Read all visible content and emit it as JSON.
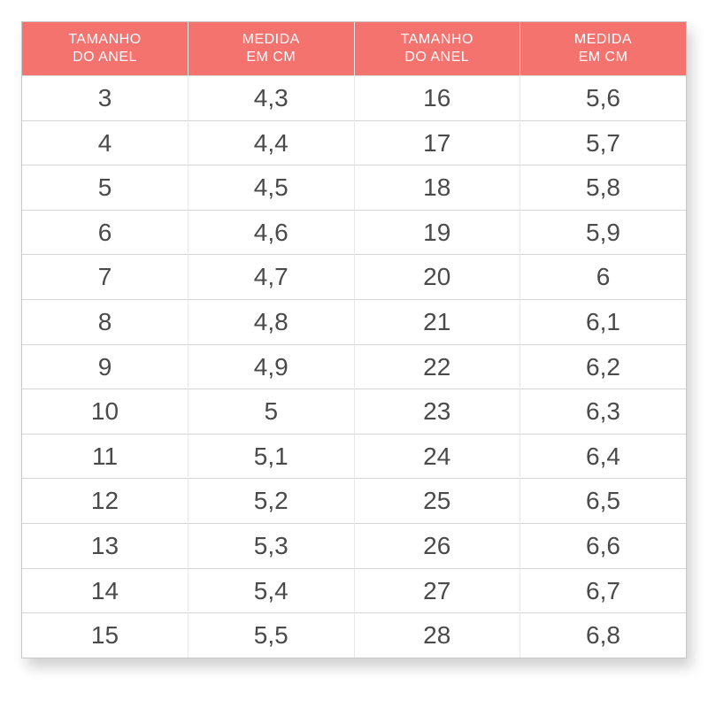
{
  "table": {
    "type": "table",
    "header_bg": "#f4736f",
    "header_text_color": "#ffffff",
    "header_fontsize": 16,
    "cell_fontsize": 28,
    "cell_text_color": "#4a4a4a",
    "border_color": "#d4d4d4",
    "background_color": "#ffffff",
    "columns": [
      {
        "line1": "TAMANHO",
        "line2": "DO ANEL",
        "width": 0.25
      },
      {
        "line1": "MEDIDA",
        "line2": "EM CM",
        "width": 0.25
      },
      {
        "line1": "TAMANHO",
        "line2": "DO ANEL",
        "width": 0.25
      },
      {
        "line1": "MEDIDA",
        "line2": "EM CM",
        "width": 0.25
      }
    ],
    "rows": [
      [
        "3",
        "4,3",
        "16",
        "5,6"
      ],
      [
        "4",
        "4,4",
        "17",
        "5,7"
      ],
      [
        "5",
        "4,5",
        "18",
        "5,8"
      ],
      [
        "6",
        "4,6",
        "19",
        "5,9"
      ],
      [
        "7",
        "4,7",
        "20",
        "6"
      ],
      [
        "8",
        "4,8",
        "21",
        "6,1"
      ],
      [
        "9",
        "4,9",
        "22",
        "6,2"
      ],
      [
        "10",
        "5",
        "23",
        "6,3"
      ],
      [
        "11",
        "5,1",
        "24",
        "6,4"
      ],
      [
        "12",
        "5,2",
        "25",
        "6,5"
      ],
      [
        "13",
        "5,3",
        "26",
        "6,6"
      ],
      [
        "14",
        "5,4",
        "27",
        "6,7"
      ],
      [
        "15",
        "5,5",
        "28",
        "6,8"
      ]
    ]
  }
}
